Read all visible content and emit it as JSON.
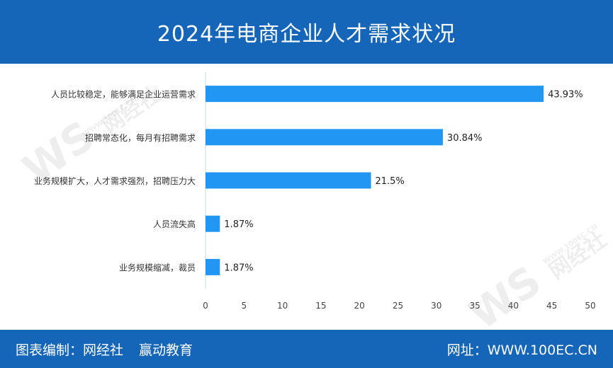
{
  "header": {
    "title": "2024年电商企业人才需求状况"
  },
  "footer": {
    "credit_label": "图表编制：",
    "credit_org1": "网经社",
    "credit_org2": "赢动教育",
    "site_label": "网址：",
    "site_url": "WWW.100EC.CN"
  },
  "watermark": {
    "logo": "WS",
    "name": "网经社",
    "domain": "WWW.100EC.CN"
  },
  "colors": {
    "header_bg": "#1565b8",
    "bar": "#2196f3",
    "axis": "#cfd8e3"
  },
  "chart_data": {
    "type": "bar",
    "orientation": "horizontal",
    "title": "2024年电商企业人才需求状况",
    "xlabel": "",
    "ylabel": "",
    "xlim": [
      0,
      50
    ],
    "xticks": [
      0,
      5,
      10,
      15,
      20,
      25,
      30,
      35,
      40,
      45,
      50
    ],
    "grid": false,
    "legend": "none",
    "categories": [
      "人员比较稳定，能够满足企业运营需求",
      "招聘常态化，每月有招聘需求",
      "业务规模扩大，人才需求强烈，招聘压力大",
      "人员流失高",
      "业务规模缩减，裁员"
    ],
    "values": [
      43.93,
      30.84,
      21.5,
      1.87,
      1.87
    ],
    "value_labels": [
      "43.93%",
      "30.84%",
      "21.5%",
      "1.87%",
      "1.87%"
    ]
  }
}
